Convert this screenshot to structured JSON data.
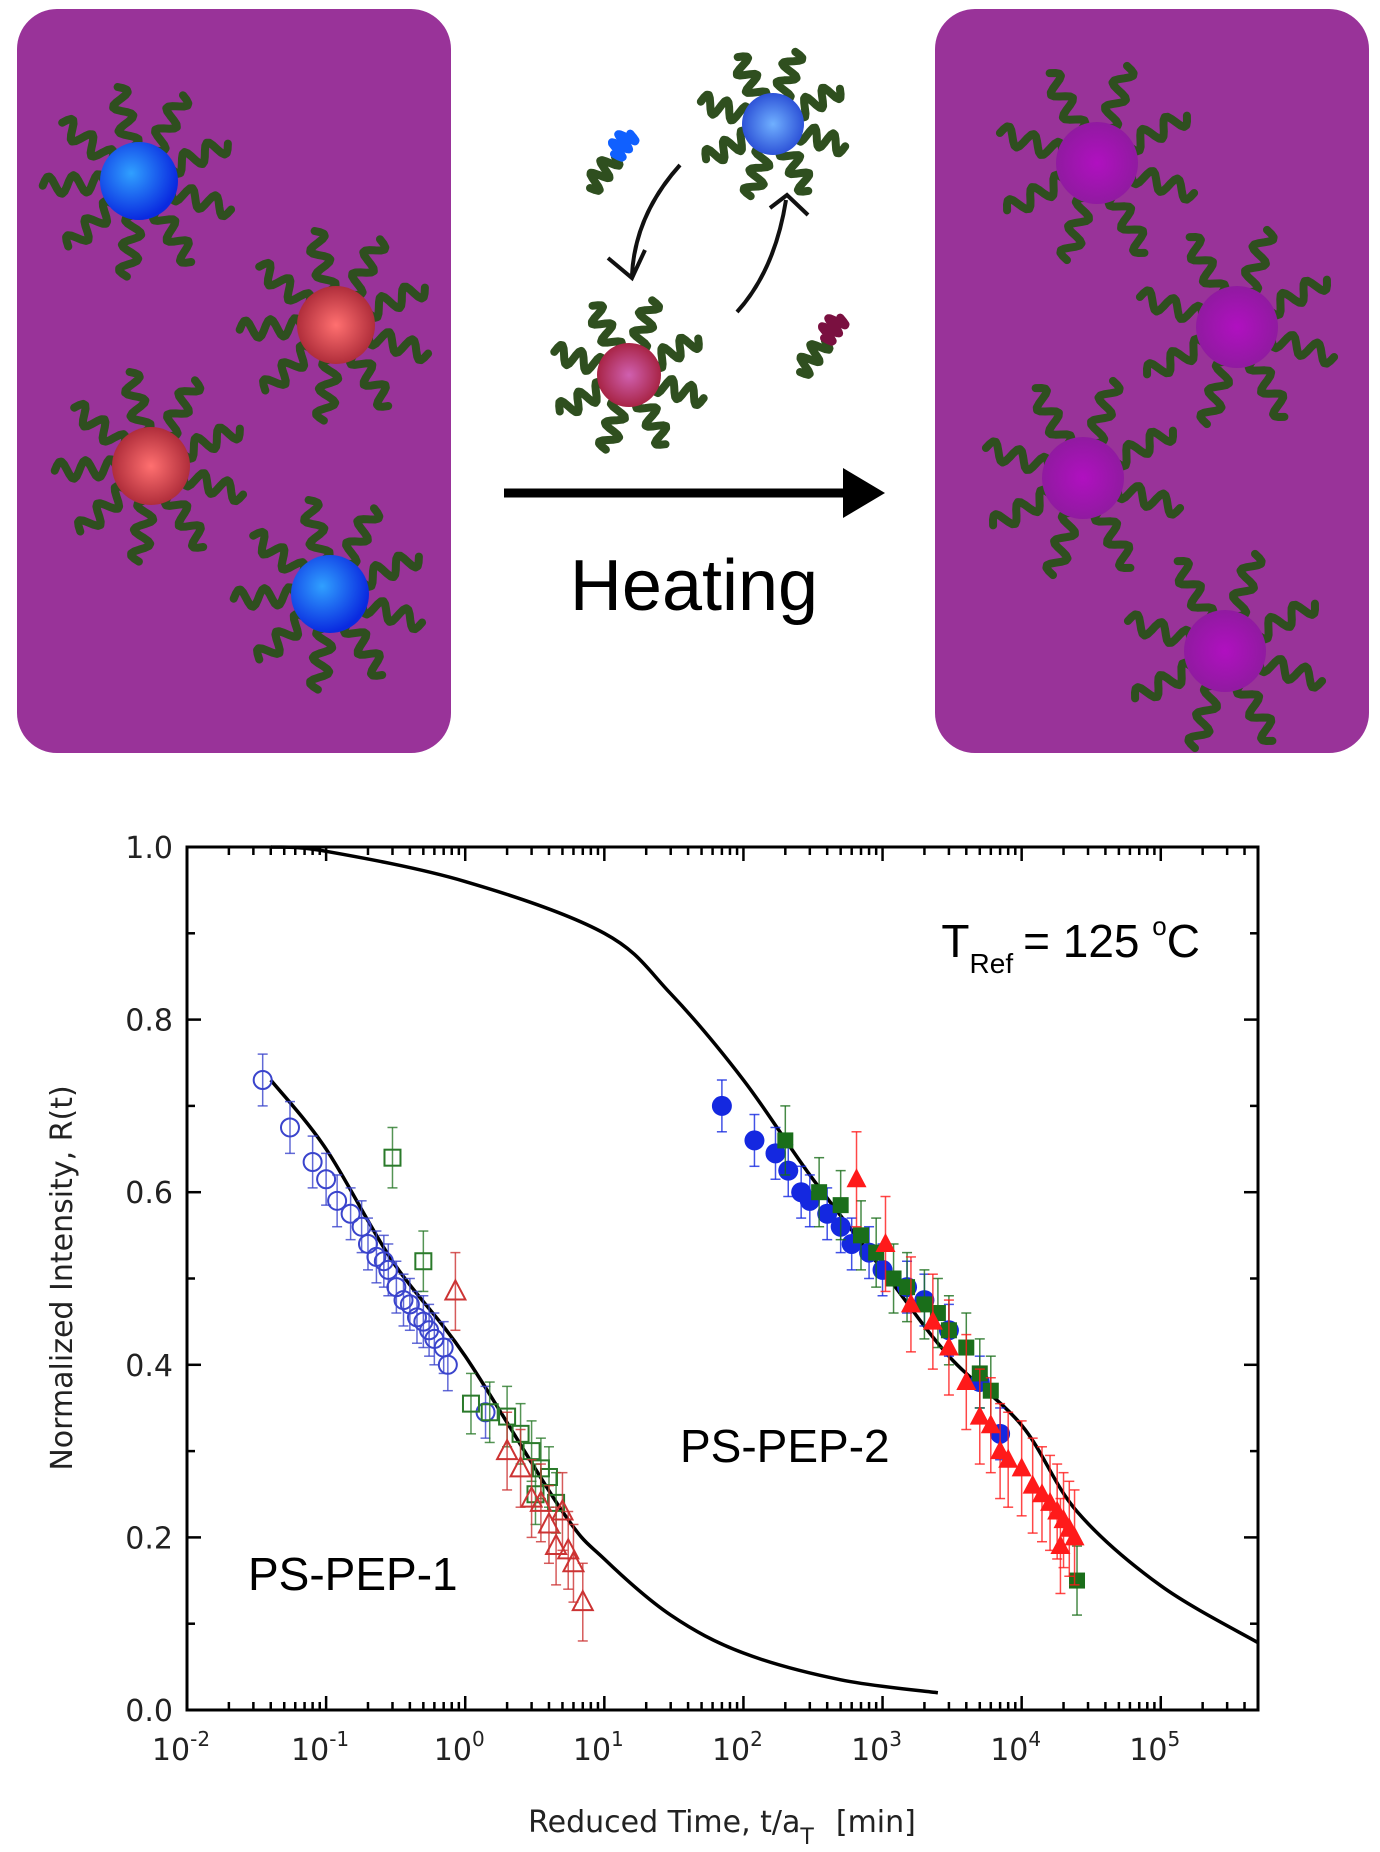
{
  "schematic": {
    "arrow_label": "Heating",
    "panel_color": "#993399",
    "chain_color": "#2f4f1f",
    "particle_colors": {
      "blue": "#1060ff",
      "red": "#e05a5a",
      "purple": "#a020b0",
      "maroon": "#7a1040"
    }
  },
  "chart_data": {
    "type": "scatter",
    "title": "",
    "xlabel": "Reduced Time, t/a",
    "xlabel_sub": "T",
    "xlabel_unit": "[min]",
    "ylabel": "Normalized Intensity, R(t)",
    "xscale": "log",
    "xlim": [
      0.01,
      500000
    ],
    "ylim": [
      0.0,
      1.0
    ],
    "grid": false,
    "yticks": [
      "0.0",
      "0.2",
      "0.4",
      "0.6",
      "0.8",
      "1.0"
    ],
    "xticks": [
      {
        "base": "10",
        "exp": "-2"
      },
      {
        "base": "10",
        "exp": "-1"
      },
      {
        "base": "10",
        "exp": "0"
      },
      {
        "base": "10",
        "exp": "1"
      },
      {
        "base": "10",
        "exp": "2"
      },
      {
        "base": "10",
        "exp": "3"
      },
      {
        "base": "10",
        "exp": "4"
      },
      {
        "base": "10",
        "exp": "5"
      }
    ],
    "annotations": {
      "tref_main": "T",
      "tref_sub": "Ref",
      "tref_value": "= 125 ",
      "tref_deg": "o",
      "tref_unit": "C",
      "label_1": "PS-PEP-1",
      "label_2": "PS-PEP-2"
    },
    "series": [
      {
        "name": "PS-PEP-1 blue",
        "group": "PS-PEP-1",
        "marker": "circle",
        "filled": false,
        "color": "#3a44cc",
        "err": 0.03,
        "points": [
          [
            0.035,
            0.73
          ],
          [
            0.055,
            0.675
          ],
          [
            0.08,
            0.635
          ],
          [
            0.1,
            0.615
          ],
          [
            0.12,
            0.59
          ],
          [
            0.15,
            0.575
          ],
          [
            0.18,
            0.56
          ],
          [
            0.2,
            0.54
          ],
          [
            0.23,
            0.525
          ],
          [
            0.26,
            0.52
          ],
          [
            0.28,
            0.51
          ],
          [
            0.32,
            0.49
          ],
          [
            0.36,
            0.475
          ],
          [
            0.4,
            0.47
          ],
          [
            0.45,
            0.455
          ],
          [
            0.5,
            0.45
          ],
          [
            0.55,
            0.44
          ],
          [
            0.6,
            0.43
          ],
          [
            0.7,
            0.42
          ],
          [
            0.75,
            0.4
          ],
          [
            1.4,
            0.345
          ]
        ]
      },
      {
        "name": "PS-PEP-1 green",
        "group": "PS-PEP-1",
        "marker": "square",
        "filled": false,
        "color": "#2a7a2a",
        "err": 0.035,
        "points": [
          [
            0.3,
            0.64
          ],
          [
            0.5,
            0.52
          ],
          [
            1.1,
            0.355
          ],
          [
            1.5,
            0.345
          ],
          [
            2,
            0.34
          ],
          [
            2.5,
            0.32
          ],
          [
            3,
            0.3
          ],
          [
            3.5,
            0.28
          ],
          [
            4,
            0.27
          ],
          [
            3.2,
            0.25
          ],
          [
            4.5,
            0.24
          ]
        ]
      },
      {
        "name": "PS-PEP-1 red",
        "group": "PS-PEP-1",
        "marker": "triangle",
        "filled": false,
        "color": "#cc3333",
        "err": 0.045,
        "points": [
          [
            0.85,
            0.485
          ],
          [
            2,
            0.3
          ],
          [
            2.5,
            0.28
          ],
          [
            3,
            0.245
          ],
          [
            3.5,
            0.24
          ],
          [
            4,
            0.215
          ],
          [
            4.5,
            0.19
          ],
          [
            5,
            0.23
          ],
          [
            5.5,
            0.185
          ],
          [
            6,
            0.17
          ],
          [
            7,
            0.125
          ]
        ]
      },
      {
        "name": "PS-PEP-2 blue",
        "group": "PS-PEP-2",
        "marker": "circle",
        "filled": true,
        "color": "#1428e0",
        "err": 0.03,
        "points": [
          [
            70,
            0.7
          ],
          [
            120,
            0.66
          ],
          [
            170,
            0.645
          ],
          [
            210,
            0.625
          ],
          [
            260,
            0.6
          ],
          [
            300,
            0.59
          ],
          [
            400,
            0.575
          ],
          [
            500,
            0.56
          ],
          [
            600,
            0.54
          ],
          [
            800,
            0.53
          ],
          [
            1000,
            0.51
          ],
          [
            1500,
            0.49
          ],
          [
            2000,
            0.475
          ],
          [
            3000,
            0.44
          ],
          [
            5000,
            0.38
          ],
          [
            7000,
            0.32
          ]
        ]
      },
      {
        "name": "PS-PEP-2 green",
        "group": "PS-PEP-2",
        "marker": "square",
        "filled": true,
        "color": "#1a6e1a",
        "err": 0.04,
        "points": [
          [
            200,
            0.66
          ],
          [
            350,
            0.6
          ],
          [
            500,
            0.585
          ],
          [
            700,
            0.55
          ],
          [
            900,
            0.53
          ],
          [
            1200,
            0.5
          ],
          [
            1500,
            0.49
          ],
          [
            2000,
            0.47
          ],
          [
            2500,
            0.46
          ],
          [
            3000,
            0.44
          ],
          [
            4000,
            0.42
          ],
          [
            5000,
            0.39
          ],
          [
            6000,
            0.37
          ],
          [
            25000,
            0.15
          ]
        ]
      },
      {
        "name": "PS-PEP-2 red",
        "group": "PS-PEP-2",
        "marker": "triangle",
        "filled": true,
        "color": "#ff1a1a",
        "err": 0.055,
        "points": [
          [
            650,
            0.615
          ],
          [
            1050,
            0.54
          ],
          [
            1600,
            0.47
          ],
          [
            2300,
            0.45
          ],
          [
            3000,
            0.42
          ],
          [
            4000,
            0.38
          ],
          [
            5000,
            0.34
          ],
          [
            6000,
            0.33
          ],
          [
            7000,
            0.3
          ],
          [
            8000,
            0.29
          ],
          [
            10000,
            0.28
          ],
          [
            12000,
            0.26
          ],
          [
            14000,
            0.25
          ],
          [
            16000,
            0.24
          ],
          [
            18000,
            0.23
          ],
          [
            19000,
            0.19
          ],
          [
            20000,
            0.22
          ],
          [
            22000,
            0.21
          ],
          [
            24000,
            0.2
          ]
        ]
      }
    ],
    "fits": [
      {
        "name": "fit PS-PEP-1",
        "points": [
          [
            0.04,
            0.73
          ],
          [
            0.1,
            0.65
          ],
          [
            0.3,
            0.52
          ],
          [
            1,
            0.41
          ],
          [
            5,
            0.23
          ],
          [
            10,
            0.175
          ],
          [
            30,
            0.11
          ],
          [
            100,
            0.066
          ],
          [
            500,
            0.035
          ],
          [
            2500,
            0.02
          ]
        ]
      },
      {
        "name": "fit PS-PEP-2",
        "points": [
          [
            0.04,
            1.0
          ],
          [
            0.1,
            0.995
          ],
          [
            1,
            0.96
          ],
          [
            10,
            0.9
          ],
          [
            30,
            0.83
          ],
          [
            100,
            0.73
          ],
          [
            300,
            0.62
          ],
          [
            1000,
            0.51
          ],
          [
            3000,
            0.41
          ],
          [
            10000,
            0.33
          ],
          [
            25000,
            0.23
          ],
          [
            100000,
            0.144
          ],
          [
            500000,
            0.078
          ]
        ]
      }
    ]
  }
}
